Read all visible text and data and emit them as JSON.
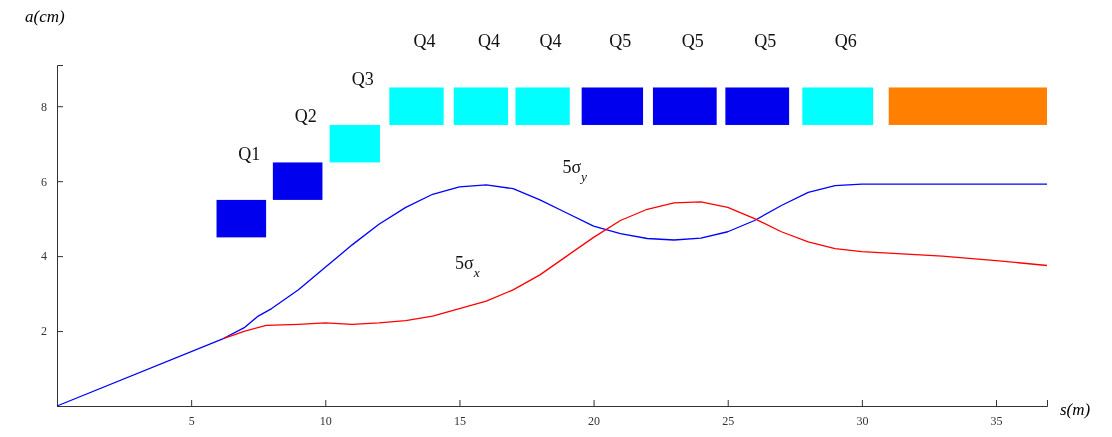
{
  "chart_data": {
    "type": "line",
    "xlabel": "s(m)",
    "ylabel": "a(cm)",
    "xlim": [
      0,
      36.9
    ],
    "ylim": [
      0,
      9.1
    ],
    "xticks": [
      5,
      10,
      15,
      20,
      25,
      30,
      35
    ],
    "yticks": [
      2,
      4,
      6,
      8
    ],
    "grid": false,
    "marker": "none",
    "series": [
      {
        "type": "bar",
        "x": [
          6.87,
          8.97,
          11.1,
          13.4,
          15.8,
          18.1,
          20.7,
          23.4,
          26.1,
          29.1,
          33.95
        ],
        "base": [
          4.5,
          5.5,
          6.5,
          7.5,
          7.5,
          7.5,
          7.5,
          7.5,
          7.5,
          7.5,
          7.5
        ],
        "values": [
          1,
          1,
          1,
          1,
          1,
          1,
          1,
          1,
          1,
          1,
          1
        ],
        "colors": [
          "#0000ee",
          "#0000ee",
          "#00ffff",
          "#00ffff",
          "#00ffff",
          "#00ffff",
          "#0000ee",
          "#0000ee",
          "#0000ee",
          "#00ffff",
          "#ff8000"
        ]
      },
      {
        "color": "#0000ff",
        "x": [
          0,
          6.2,
          7,
          7.5,
          8,
          9,
          10,
          11,
          12,
          13,
          14,
          15,
          16,
          17,
          18,
          19,
          20,
          21,
          22,
          23,
          24,
          25,
          26,
          27,
          28,
          29,
          30,
          36.9
        ],
        "values": [
          0,
          1.8,
          2.1,
          2.4,
          2.6,
          3.1,
          3.7,
          4.3,
          4.85,
          5.3,
          5.65,
          5.85,
          5.9,
          5.8,
          5.5,
          5.15,
          4.8,
          4.6,
          4.47,
          4.43,
          4.48,
          4.65,
          4.95,
          5.35,
          5.7,
          5.88,
          5.92,
          5.92
        ]
      },
      {
        "color": "#ff0000",
        "x": [
          6.2,
          7,
          7.8,
          9,
          10,
          11,
          12,
          13,
          14,
          15,
          16,
          17,
          18,
          19,
          20,
          21,
          22,
          23,
          24,
          25,
          26,
          27,
          28,
          29,
          30,
          31,
          33,
          35,
          36.9
        ],
        "values": [
          1.8,
          2.0,
          2.15,
          2.18,
          2.22,
          2.18,
          2.22,
          2.28,
          2.4,
          2.6,
          2.8,
          3.1,
          3.5,
          4.0,
          4.5,
          4.95,
          5.25,
          5.42,
          5.45,
          5.3,
          5.0,
          4.65,
          4.38,
          4.2,
          4.12,
          4.08,
          4.0,
          3.88,
          3.75
        ]
      }
    ],
    "annotations": [
      {
        "text": "Q1",
        "x": 6.87,
        "y": 5.5
      },
      {
        "text": "Q2",
        "x": 8.97,
        "y": 6.5
      },
      {
        "text": "Q3",
        "x": 11.1,
        "y": 7.5
      },
      {
        "text": "Q4",
        "x": 13.4,
        "y": 8.5
      },
      {
        "text": "Q4",
        "x": 15.8,
        "y": 8.5
      },
      {
        "text": "Q4",
        "x": 18.1,
        "y": 8.5
      },
      {
        "text": "Q5",
        "x": 20.7,
        "y": 8.5
      },
      {
        "text": "Q5",
        "x": 23.4,
        "y": 8.5
      },
      {
        "text": "Q5",
        "x": 26.1,
        "y": 8.5
      },
      {
        "text": "Q6",
        "x": 29.1,
        "y": 8.5
      },
      {
        "text": "5σ$_{y}$",
        "x": 19,
        "y": 5.15
      },
      {
        "text": "5σ$_{x}$",
        "x": 15,
        "y": 2.6
      }
    ]
  }
}
